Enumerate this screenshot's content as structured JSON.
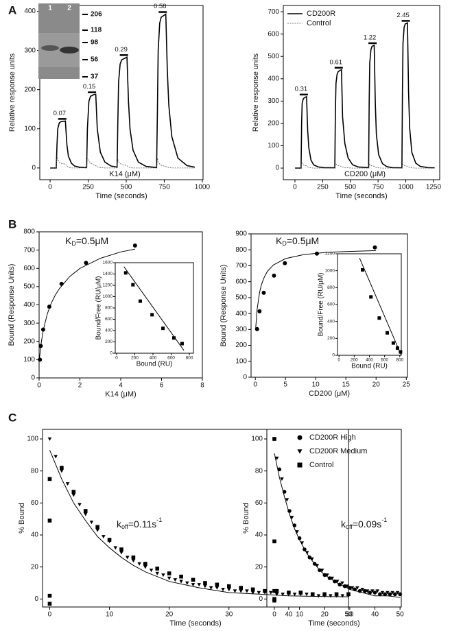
{
  "chart_data": [
    {
      "type": "line",
      "panel": "A",
      "xlabel": "Time (seconds)",
      "ylabel": "Relative response units",
      "note": "K14 (μM)",
      "xlim": [
        -68,
        1005
      ],
      "ylim": [
        -30,
        415
      ],
      "xticks": [
        0,
        250,
        500,
        750,
        1000
      ],
      "yticks": [
        0,
        100,
        200,
        300,
        400
      ],
      "x": [
        0,
        40,
        45,
        50,
        60,
        70,
        100,
        110,
        120,
        140,
        160,
        190,
        230,
        240,
        245,
        255,
        265,
        290,
        300,
        310,
        330,
        360,
        400,
        440,
        445,
        450,
        460,
        470,
        505,
        515,
        525,
        545,
        580,
        630,
        700,
        705,
        710,
        720,
        730,
        760,
        770,
        780,
        800,
        840,
        900,
        950
      ],
      "series": [
        {
          "color": "#000000",
          "line": "solid",
          "values": [
            0,
            0,
            60,
            100,
            115,
            118,
            120,
            60,
            30,
            12,
            5,
            2,
            1,
            1,
            100,
            170,
            183,
            188,
            188,
            100,
            40,
            15,
            5,
            2,
            120,
            220,
            265,
            276,
            283,
            170,
            100,
            45,
            15,
            4,
            1,
            150,
            300,
            370,
            385,
            393,
            250,
            160,
            80,
            25,
            6,
            2
          ]
        },
        {
          "color": "#555555",
          "line": "dashed",
          "values": [
            0,
            0,
            30,
            22,
            15,
            12,
            10,
            5,
            2,
            0,
            0,
            0,
            0,
            0,
            25,
            18,
            12,
            8,
            6,
            3,
            1,
            0,
            0,
            0,
            22,
            16,
            12,
            9,
            6,
            3,
            1,
            0,
            0,
            0,
            0,
            25,
            15,
            10,
            7,
            4,
            2,
            1,
            0,
            0,
            0,
            0
          ]
        }
      ],
      "annotations": [
        {
          "label": "0.07",
          "x": 80,
          "y": 120
        },
        {
          "label": "0.15",
          "x": 275,
          "y": 188
        },
        {
          "label": "0.29",
          "x": 485,
          "y": 283
        },
        {
          "label": "0.58",
          "x": 740,
          "y": 393
        }
      ],
      "gel": {
        "lanes": [
          "1",
          "2"
        ],
        "markers": [
          "206",
          "118",
          "98",
          "56",
          "37"
        ]
      }
    },
    {
      "type": "line",
      "xlabel": "Time (seconds)",
      "ylabel": "Relative response units",
      "note": "CD200 (μM)",
      "legend": "upper left",
      "xlim": [
        -105,
        1306
      ],
      "ylim": [
        -52,
        728
      ],
      "xticks": [
        0,
        250,
        500,
        750,
        1000,
        1250
      ],
      "yticks": [
        0,
        100,
        200,
        300,
        400,
        500,
        600,
        700
      ],
      "x": [
        0,
        55,
        60,
        65,
        75,
        85,
        105,
        115,
        125,
        145,
        170,
        210,
        260,
        360,
        365,
        370,
        380,
        390,
        410,
        420,
        430,
        450,
        480,
        520,
        570,
        665,
        670,
        675,
        685,
        695,
        715,
        725,
        735,
        755,
        790,
        830,
        880,
        965,
        970,
        975,
        985,
        995,
        1015,
        1025,
        1035,
        1055,
        1090,
        1130,
        1200,
        1260
      ],
      "series": [
        {
          "name": "CD200R",
          "color": "#000000",
          "line": "solid",
          "values": [
            0,
            0,
            200,
            290,
            310,
            315,
            320,
            170,
            90,
            35,
            14,
            5,
            2,
            1,
            250,
            380,
            420,
            432,
            438,
            440,
            230,
            110,
            45,
            15,
            5,
            2,
            300,
            470,
            530,
            545,
            550,
            290,
            150,
            60,
            20,
            6,
            2,
            1,
            350,
            560,
            630,
            645,
            650,
            340,
            180,
            70,
            22,
            8,
            2,
            1
          ]
        },
        {
          "name": "Control",
          "color": "#555555",
          "line": "dashed",
          "values": [
            0,
            0,
            25,
            20,
            15,
            12,
            10,
            6,
            3,
            1,
            0,
            0,
            0,
            0,
            22,
            18,
            14,
            11,
            9,
            8,
            5,
            2,
            1,
            0,
            0,
            0,
            20,
            15,
            12,
            10,
            8,
            5,
            2,
            1,
            0,
            0,
            0,
            0,
            20,
            15,
            12,
            10,
            8,
            5,
            2,
            1,
            0,
            0,
            0,
            0
          ]
        }
      ],
      "annotations": [
        {
          "label": "0.31",
          "x": 80,
          "y": 320
        },
        {
          "label": "0.61",
          "x": 395,
          "y": 440
        },
        {
          "label": "1.22",
          "x": 700,
          "y": 550
        },
        {
          "label": "2.45",
          "x": 1000,
          "y": 650
        }
      ]
    },
    {
      "type": "scatter",
      "panel": "B",
      "xlabel": "K14 (μM)",
      "ylabel": "Bound (Response Units)",
      "formula": {
        "text": "K",
        "sub": "D",
        "after": "=0.5μM"
      },
      "xlim": [
        0,
        8
      ],
      "ylim": [
        0,
        800
      ],
      "xticks": [
        0,
        2,
        4,
        6,
        8
      ],
      "yticks": [
        0,
        100,
        200,
        300,
        400,
        500,
        600,
        700,
        800
      ],
      "series": [
        {
          "color": "#000000",
          "marker": "circle",
          "x": [
            0.04,
            0.08,
            0.2,
            0.5,
            1.1,
            2.3,
            4.7
          ],
          "values": [
            100,
            175,
            265,
            390,
            515,
            630,
            725
          ]
        },
        {
          "color": "#000000",
          "line": "solid",
          "x": [
            0.02,
            0.1,
            0.2,
            0.4,
            0.6,
            0.8,
            1,
            1.5,
            2,
            3,
            4,
            4.7
          ],
          "values": [
            110,
            190,
            260,
            350,
            410,
            455,
            490,
            555,
            600,
            655,
            690,
            705
          ]
        }
      ]
    },
    {
      "type": "scatter",
      "inset": true,
      "xlabel": "Bound (RU)",
      "ylabel": "Bound/Free (RU/μM)",
      "xlim": [
        -15,
        845
      ],
      "ylim": [
        0,
        1600
      ],
      "xticks": [
        0,
        200,
        400,
        600,
        800
      ],
      "yticks": [
        0,
        200,
        400,
        600,
        800,
        1000,
        1200,
        1400,
        1600
      ],
      "series": [
        {
          "color": "#000000",
          "marker": "square",
          "x": [
            100,
            180,
            260,
            390,
            510,
            630,
            720
          ],
          "values": [
            1420,
            1210,
            920,
            680,
            440,
            270,
            170
          ]
        },
        {
          "color": "#000000",
          "line": "solid",
          "x": [
            80,
            740
          ],
          "values": [
            1530,
            50
          ]
        }
      ]
    },
    {
      "type": "scatter",
      "xlabel": "CD200 (μM)",
      "ylabel": "Bound (Response Units)",
      "formula": {
        "text": "K",
        "sub": "D",
        "after": "=0.5μM"
      },
      "xlim": [
        -0.7,
        25.2
      ],
      "ylim": [
        0,
        900
      ],
      "xticks": [
        0,
        5,
        10,
        15,
        20,
        25
      ],
      "yticks": [
        0,
        100,
        200,
        300,
        400,
        500,
        600,
        700,
        800,
        900
      ],
      "series": [
        {
          "color": "#000000",
          "marker": "circle",
          "x": [
            0.3,
            0.7,
            1.4,
            3.1,
            4.9,
            10.2,
            19.8
          ],
          "values": [
            302,
            414,
            530,
            638,
            716,
            776,
            815
          ]
        },
        {
          "color": "#000000",
          "line": "solid",
          "x": [
            0.05,
            0.3,
            0.7,
            1,
            1.5,
            2,
            3,
            5,
            8,
            12,
            16,
            20
          ],
          "values": [
            300,
            425,
            530,
            580,
            630,
            665,
            705,
            745,
            770,
            785,
            790,
            795
          ]
        }
      ]
    },
    {
      "type": "scatter",
      "inset": true,
      "xlabel": "Bound (RU)",
      "ylabel": "Bound/Free (RU/μM)",
      "xlim": [
        -20,
        820
      ],
      "ylim": [
        0,
        1200
      ],
      "xticks": [
        0,
        200,
        400,
        600,
        800
      ],
      "yticks": [
        0,
        200,
        400,
        600,
        800,
        1000,
        1200
      ],
      "series": [
        {
          "color": "#000000",
          "marker": "square",
          "x": [
            310,
            420,
            530,
            635,
            715,
            770,
            810
          ],
          "values": [
            1010,
            690,
            440,
            265,
            145,
            85,
            40
          ]
        },
        {
          "color": "#000000",
          "line": "solid",
          "x": [
            270,
            820
          ],
          "values": [
            1150,
            0
          ]
        }
      ]
    },
    {
      "type": "scatter",
      "panel": "C",
      "xlabel": "Time (seconds)",
      "ylabel": "% Bound",
      "formula": {
        "text": "k",
        "sub": "off",
        "after": "=0.11s",
        "sup": "-1"
      },
      "xlim": [
        -1.2,
        50
      ],
      "ylim": [
        -5,
        106
      ],
      "xticks": [
        0,
        10,
        20,
        30,
        40,
        50
      ],
      "yticks": [
        0,
        20,
        40,
        60,
        80,
        100
      ],
      "series": [
        {
          "color": "#000000",
          "marker": "triangle-down",
          "x": [
            0,
            1,
            2,
            3,
            4,
            5,
            6,
            7,
            8,
            9,
            10,
            11,
            12,
            13,
            14,
            15,
            16,
            17,
            18,
            19,
            20,
            21,
            22,
            23,
            24,
            25,
            26,
            27,
            28,
            29,
            30,
            31,
            32,
            33,
            34,
            35,
            36,
            37,
            38,
            39,
            40,
            41,
            42,
            43,
            44,
            45,
            46,
            47,
            48,
            49,
            50
          ],
          "values": [
            100,
            89,
            80,
            72,
            65,
            59,
            53,
            48,
            43,
            39,
            36,
            32,
            29,
            26,
            24,
            22,
            20,
            18,
            16,
            15,
            13,
            12,
            11,
            10,
            9,
            9,
            8,
            7,
            7,
            6,
            6,
            5,
            5,
            5,
            4,
            4,
            4,
            4,
            3,
            3,
            3,
            3,
            3,
            3,
            3,
            2,
            2,
            2,
            2,
            2,
            2
          ]
        },
        {
          "color": "#000000",
          "marker": "square",
          "x": [
            0,
            0,
            0,
            0,
            2,
            4,
            6,
            8,
            10,
            12,
            14,
            16,
            18,
            20,
            22,
            24,
            26,
            28,
            30,
            32,
            34,
            36,
            38,
            40,
            42,
            44,
            46,
            48,
            50
          ],
          "values": [
            75,
            49,
            2,
            -3,
            82,
            67,
            55,
            45,
            37,
            31,
            26,
            22,
            19,
            16,
            14,
            12,
            10,
            9,
            8,
            7,
            6,
            5,
            5,
            4,
            4,
            3,
            3,
            3,
            3
          ]
        },
        {
          "color": "#000000",
          "line": "solid",
          "x": [
            0,
            2,
            4,
            6,
            8,
            10,
            12,
            14,
            16,
            18,
            20,
            25,
            30,
            35,
            40,
            45,
            50
          ],
          "values": [
            93,
            75,
            60,
            49,
            39,
            32,
            26,
            21,
            17,
            14,
            11,
            7,
            4,
            3,
            2,
            1.6,
            1.4
          ]
        }
      ]
    },
    {
      "type": "scatter",
      "xlabel": "Time (seconds)",
      "ylabel": "% Bound",
      "legend": "upper right",
      "formula": {
        "text": "k",
        "sub": "off",
        "after": "=0.09s",
        "sup": "-1"
      },
      "xlim": [
        -3,
        50.5
      ],
      "ylim": [
        -5,
        106
      ],
      "xticks": [
        0,
        10,
        20,
        30,
        40,
        50
      ],
      "yticks": [
        0,
        20,
        40,
        60,
        80,
        100
      ],
      "series": [
        {
          "name": "CD200R High",
          "color": "#000000",
          "marker": "circle",
          "x": [
            0,
            2,
            4,
            6,
            8,
            10,
            12,
            14,
            16,
            18,
            20,
            22,
            24,
            26,
            28,
            30,
            32,
            34,
            36,
            38,
            40,
            42,
            44,
            46,
            48,
            50
          ],
          "values": [
            100,
            81,
            67,
            55,
            46,
            38,
            31,
            26,
            22,
            18,
            15,
            13,
            11,
            9,
            8,
            7,
            6,
            5,
            5,
            4,
            4,
            3,
            3,
            3,
            3,
            3
          ]
        },
        {
          "name": "CD200R Medium",
          "color": "#000000",
          "marker": "triangle-down",
          "x": [
            1,
            3,
            5,
            7,
            9,
            11,
            13,
            15,
            17,
            19,
            21,
            23,
            25,
            27,
            29,
            31,
            33,
            35,
            37,
            39,
            41,
            43,
            45,
            47,
            49
          ],
          "values": [
            88,
            75,
            62,
            51,
            42,
            35,
            29,
            25,
            21,
            18,
            15,
            13,
            11,
            10,
            8,
            7,
            7,
            6,
            5,
            5,
            5,
            4,
            4,
            4,
            4
          ]
        },
        {
          "name": "Control",
          "color": "#000000",
          "marker": "square",
          "x": [
            0,
            0,
            0,
            0,
            0
          ],
          "values": [
            100,
            36,
            5,
            0,
            -1
          ]
        },
        {
          "color": "#000000",
          "line": "solid",
          "x": [
            0,
            2,
            4,
            6,
            8,
            10,
            12,
            14,
            16,
            18,
            20,
            25,
            30,
            35,
            40,
            45,
            50
          ],
          "values": [
            91,
            76,
            64,
            53,
            44,
            37,
            31,
            26,
            22,
            18,
            15,
            10,
            6,
            4,
            2,
            2,
            1
          ]
        }
      ]
    }
  ]
}
